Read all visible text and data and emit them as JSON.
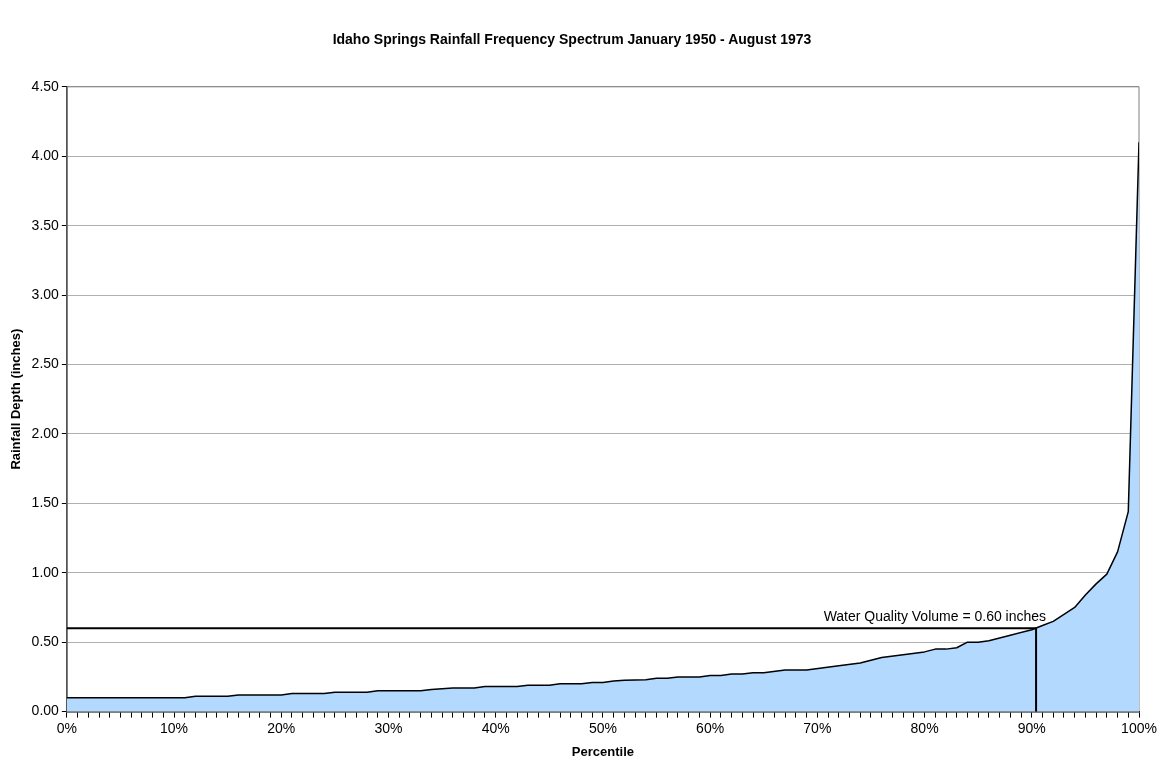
{
  "chart_data": {
    "type": "area",
    "title": "Idaho Springs Rainfall Frequency Spectrum January 1950 - August 1973",
    "xlabel": "Percentile",
    "ylabel": "Rainfall Depth (inches)",
    "x": [
      0,
      11,
      12,
      15,
      16,
      20,
      21,
      24,
      25,
      28,
      29,
      33,
      34,
      36,
      38,
      39,
      42,
      43,
      45,
      46,
      48,
      49,
      50,
      51,
      52,
      54,
      55,
      56,
      57,
      59,
      60,
      61,
      62,
      63,
      64,
      65,
      67,
      69,
      72,
      74,
      76,
      78,
      80,
      81,
      82,
      83,
      84,
      85,
      86,
      87,
      88,
      90,
      91,
      92,
      93,
      94,
      95,
      96,
      97,
      98,
      99,
      100
    ],
    "series": [
      {
        "color": "#b3d9ff",
        "values": [
          0.1,
          0.1,
          0.11,
          0.11,
          0.12,
          0.12,
          0.13,
          0.13,
          0.14,
          0.14,
          0.15,
          0.15,
          0.16,
          0.17,
          0.17,
          0.18,
          0.18,
          0.19,
          0.19,
          0.2,
          0.2,
          0.21,
          0.21,
          0.22,
          0.225,
          0.23,
          0.24,
          0.24,
          0.25,
          0.25,
          0.26,
          0.26,
          0.27,
          0.27,
          0.28,
          0.28,
          0.3,
          0.3,
          0.33,
          0.35,
          0.39,
          0.41,
          0.43,
          0.45,
          0.45,
          0.46,
          0.5,
          0.5,
          0.51,
          0.53,
          0.55,
          0.59,
          0.62,
          0.65,
          0.7,
          0.75,
          0.84,
          0.92,
          0.99,
          1.15,
          1.44,
          4.1
        ]
      }
    ],
    "xlim": [
      0,
      100
    ],
    "xticks": [
      {
        "value": 0,
        "label": "0%"
      },
      {
        "value": 1,
        "label": null
      },
      {
        "value": 2,
        "label": null
      },
      {
        "value": 3,
        "label": null
      },
      {
        "value": 4,
        "label": null
      },
      {
        "value": 5,
        "label": null
      },
      {
        "value": 6,
        "label": null
      },
      {
        "value": 7,
        "label": null
      },
      {
        "value": 8,
        "label": null
      },
      {
        "value": 9,
        "label": null
      },
      {
        "value": 10,
        "label": "10%"
      },
      {
        "value": 11,
        "label": null
      },
      {
        "value": 12,
        "label": null
      },
      {
        "value": 13,
        "label": null
      },
      {
        "value": 14,
        "label": null
      },
      {
        "value": 15,
        "label": null
      },
      {
        "value": 16,
        "label": null
      },
      {
        "value": 17,
        "label": null
      },
      {
        "value": 18,
        "label": null
      },
      {
        "value": 19,
        "label": null
      },
      {
        "value": 20,
        "label": "20%"
      },
      {
        "value": 21,
        "label": null
      },
      {
        "value": 22,
        "label": null
      },
      {
        "value": 23,
        "label": null
      },
      {
        "value": 24,
        "label": null
      },
      {
        "value": 25,
        "label": null
      },
      {
        "value": 26,
        "label": null
      },
      {
        "value": 27,
        "label": null
      },
      {
        "value": 28,
        "label": null
      },
      {
        "value": 29,
        "label": null
      },
      {
        "value": 30,
        "label": "30%"
      },
      {
        "value": 31,
        "label": null
      },
      {
        "value": 32,
        "label": null
      },
      {
        "value": 33,
        "label": null
      },
      {
        "value": 34,
        "label": null
      },
      {
        "value": 35,
        "label": null
      },
      {
        "value": 36,
        "label": null
      },
      {
        "value": 37,
        "label": null
      },
      {
        "value": 38,
        "label": null
      },
      {
        "value": 39,
        "label": null
      },
      {
        "value": 40,
        "label": "40%"
      },
      {
        "value": 41,
        "label": null
      },
      {
        "value": 42,
        "label": null
      },
      {
        "value": 43,
        "label": null
      },
      {
        "value": 44,
        "label": null
      },
      {
        "value": 45,
        "label": null
      },
      {
        "value": 46,
        "label": null
      },
      {
        "value": 47,
        "label": null
      },
      {
        "value": 48,
        "label": null
      },
      {
        "value": 49,
        "label": null
      },
      {
        "value": 50,
        "label": "50%"
      },
      {
        "value": 51,
        "label": null
      },
      {
        "value": 52,
        "label": null
      },
      {
        "value": 53,
        "label": null
      },
      {
        "value": 54,
        "label": null
      },
      {
        "value": 55,
        "label": null
      },
      {
        "value": 56,
        "label": null
      },
      {
        "value": 57,
        "label": null
      },
      {
        "value": 58,
        "label": null
      },
      {
        "value": 59,
        "label": null
      },
      {
        "value": 60,
        "label": "60%"
      },
      {
        "value": 61,
        "label": null
      },
      {
        "value": 62,
        "label": null
      },
      {
        "value": 63,
        "label": null
      },
      {
        "value": 64,
        "label": null
      },
      {
        "value": 65,
        "label": null
      },
      {
        "value": 66,
        "label": null
      },
      {
        "value": 67,
        "label": null
      },
      {
        "value": 68,
        "label": null
      },
      {
        "value": 69,
        "label": null
      },
      {
        "value": 70,
        "label": "70%"
      },
      {
        "value": 71,
        "label": null
      },
      {
        "value": 72,
        "label": null
      },
      {
        "value": 73,
        "label": null
      },
      {
        "value": 74,
        "label": null
      },
      {
        "value": 75,
        "label": null
      },
      {
        "value": 76,
        "label": null
      },
      {
        "value": 77,
        "label": null
      },
      {
        "value": 78,
        "label": null
      },
      {
        "value": 79,
        "label": null
      },
      {
        "value": 80,
        "label": "80%"
      },
      {
        "value": 81,
        "label": null
      },
      {
        "value": 82,
        "label": null
      },
      {
        "value": 83,
        "label": null
      },
      {
        "value": 84,
        "label": null
      },
      {
        "value": 85,
        "label": null
      },
      {
        "value": 86,
        "label": null
      },
      {
        "value": 87,
        "label": null
      },
      {
        "value": 88,
        "label": null
      },
      {
        "value": 89,
        "label": null
      },
      {
        "value": 90,
        "label": "90%"
      },
      {
        "value": 91,
        "label": null
      },
      {
        "value": 92,
        "label": null
      },
      {
        "value": 93,
        "label": null
      },
      {
        "value": 94,
        "label": null
      },
      {
        "value": 95,
        "label": null
      },
      {
        "value": 96,
        "label": null
      },
      {
        "value": 97,
        "label": null
      },
      {
        "value": 98,
        "label": null
      },
      {
        "value": 99,
        "label": null
      },
      {
        "value": 100,
        "label": "100%"
      }
    ],
    "ylim": [
      0,
      4.5
    ],
    "yticks": [
      {
        "value": 0,
        "label": "0.00"
      },
      {
        "value": 0.5,
        "label": "0.50"
      },
      {
        "value": 1,
        "label": "1.00"
      },
      {
        "value": 1.5,
        "label": "1.50"
      },
      {
        "value": 2,
        "label": "2.00"
      },
      {
        "value": 2.5,
        "label": "2.50"
      },
      {
        "value": 3,
        "label": "3.00"
      },
      {
        "value": 3.5,
        "label": "3.50"
      },
      {
        "value": 4,
        "label": "4.00"
      },
      {
        "value": 4.5,
        "label": "4.50"
      }
    ],
    "grid": "y",
    "ref_lines": [
      {
        "axis": "y",
        "value": 0.6,
        "label": "Water Quality Volume = 0.60 inches",
        "color": "#000000"
      },
      {
        "axis": "x",
        "value": 90.4,
        "color": "#000000"
      }
    ]
  }
}
